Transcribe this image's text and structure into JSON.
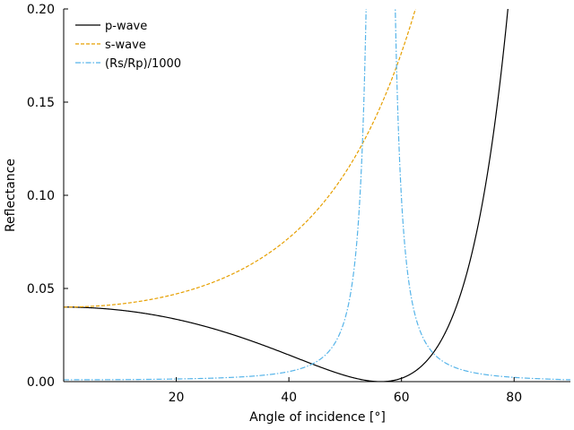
{
  "chart_data": {
    "type": "line",
    "xlabel": "Angle of incidence [°]",
    "ylabel": "Reflectance",
    "xlim": [
      0,
      90
    ],
    "ylim": [
      0,
      0.2
    ],
    "xticks": [
      20,
      40,
      60,
      80
    ],
    "xtick_labels": [
      "20",
      "40",
      "60",
      "80"
    ],
    "yticks": [
      0.0,
      0.05,
      0.1,
      0.15,
      0.2
    ],
    "ytick_labels": [
      "0.00",
      "0.05",
      "0.10",
      "0.15",
      "0.20"
    ],
    "grid": false,
    "legend_position": "top-left",
    "refractive_index_ratio": 1.5,
    "series": [
      {
        "name": "p-wave",
        "key": "p",
        "color": "#000000",
        "style": "solid"
      },
      {
        "name": "s-wave",
        "key": "s",
        "color": "#e69f00",
        "style": "dashed"
      },
      {
        "name": "(Rs/Rp)/1000",
        "key": "ratio",
        "color": "#56b4e9",
        "style": "dashdot"
      }
    ]
  }
}
